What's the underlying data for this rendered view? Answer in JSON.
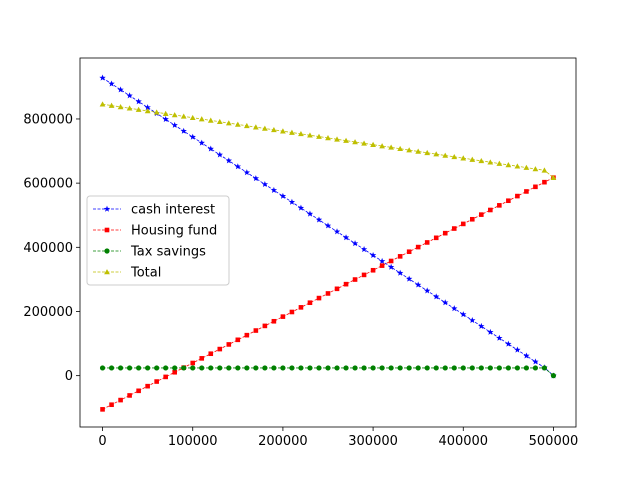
{
  "chart_data": {
    "type": "line",
    "title": "",
    "xlabel": "",
    "ylabel": "",
    "xlim": [
      -25000,
      525000
    ],
    "ylim": [
      -160000,
      990000
    ],
    "xticks": [
      0,
      100000,
      200000,
      300000,
      400000,
      500000
    ],
    "xtick_labels": [
      "0",
      "100000",
      "200000",
      "300000",
      "400000",
      "500000"
    ],
    "yticks": [
      0,
      200000,
      400000,
      600000,
      800000
    ],
    "ytick_labels": [
      "0",
      "200000",
      "400000",
      "600000",
      "800000"
    ],
    "grid": false,
    "legend_placement": "center-left",
    "x": {
      "start": 0,
      "end": 490000,
      "step": 10000,
      "final": 500000
    },
    "series": [
      {
        "name": "cash interest",
        "color": "#0000ff",
        "marker": "star",
        "values": {
          "start": 928000,
          "end": 25000,
          "final": 0
        }
      },
      {
        "name": "Housing fund",
        "color": "#ff0000",
        "marker": "square",
        "values": {
          "start": -105000,
          "end": 603000,
          "final": 617000
        }
      },
      {
        "name": "Tax savings",
        "color": "#008000",
        "marker": "circle",
        "values": {
          "start": 24000,
          "end": 24000,
          "final": 0
        }
      },
      {
        "name": "Total",
        "color": "#bfbf00",
        "marker": "triangle",
        "values": {
          "start": 846000,
          "end": 640000,
          "final": 617000
        }
      }
    ]
  }
}
